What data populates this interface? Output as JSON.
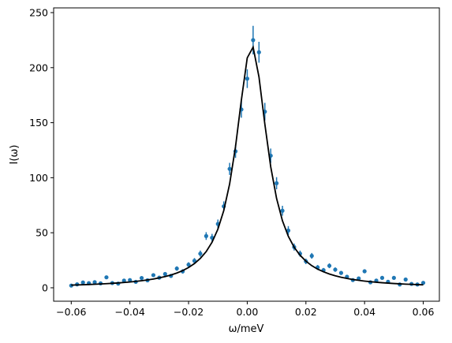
{
  "chart_data": {
    "type": "errorbar",
    "xlabel": "ω/meV",
    "ylabel": "I(ω)",
    "x": [
      -0.06,
      -0.058,
      -0.056,
      -0.054,
      -0.052,
      -0.05,
      -0.048,
      -0.046,
      -0.044,
      -0.042,
      -0.04,
      -0.038,
      -0.036,
      -0.034,
      -0.032,
      -0.03,
      -0.028,
      -0.026,
      -0.024,
      -0.022,
      -0.02,
      -0.018,
      -0.016,
      -0.014,
      -0.012,
      -0.01,
      -0.008,
      -0.006,
      -0.004,
      -0.002,
      0.0,
      0.002,
      0.004,
      0.006,
      0.008,
      0.01,
      0.012,
      0.014,
      0.016,
      0.018,
      0.02,
      0.022,
      0.024,
      0.026,
      0.028,
      0.03,
      0.032,
      0.034,
      0.036,
      0.038,
      0.04,
      0.042,
      0.044,
      0.046,
      0.048,
      0.05,
      0.052,
      0.054,
      0.056,
      0.058,
      0.06
    ],
    "series": [
      {
        "color": "#1f77b4",
        "values": [
          2.0,
          3.1,
          4.8,
          4.2,
          5.1,
          4.0,
          9.5,
          4.3,
          3.8,
          6.5,
          7.0,
          5.4,
          8.9,
          6.8,
          11.5,
          9.2,
          12.5,
          10.8,
          17.5,
          14.9,
          21.0,
          24.5,
          31.0,
          47.0,
          45.5,
          58.0,
          74.0,
          108.0,
          124.0,
          162.0,
          190.0,
          225.0,
          214.0,
          160.0,
          120.0,
          95.0,
          70.0,
          52.0,
          37.0,
          31.0,
          24.0,
          29.0,
          18.5,
          16.0,
          20.0,
          16.5,
          13.5,
          10.0,
          7.0,
          8.5,
          15.0,
          5.0,
          6.5,
          9.0,
          5.5,
          9.0,
          3.0,
          7.5,
          3.5,
          3.0,
          4.5
        ],
        "errors": [
          0.8,
          0.9,
          1.0,
          1.0,
          1.0,
          1.0,
          1.2,
          1.0,
          1.0,
          1.1,
          1.2,
          1.2,
          1.4,
          1.3,
          1.6,
          1.5,
          1.7,
          1.7,
          2.0,
          2.0,
          2.2,
          2.5,
          2.8,
          3.5,
          3.5,
          4.0,
          4.5,
          5.5,
          6.0,
          7.5,
          8.5,
          13,
          9.5,
          8.0,
          6.5,
          5.5,
          4.5,
          4.0,
          3.2,
          2.8,
          2.5,
          2.6,
          2.2,
          2.0,
          2.2,
          2.0,
          1.8,
          1.6,
          1.4,
          1.4,
          1.8,
          1.2,
          1.2,
          1.4,
          1.2,
          1.3,
          1.0,
          1.2,
          1.0,
          1.0,
          1.0
        ]
      },
      {
        "type": "line",
        "color": "#000000",
        "values": [
          2.43,
          2.59,
          2.78,
          2.98,
          3.2,
          3.45,
          3.73,
          4.04,
          4.4,
          4.81,
          5.27,
          5.8,
          6.42,
          7.14,
          7.98,
          8.99,
          10.19,
          11.64,
          13.42,
          15.63,
          18.42,
          22.0,
          26.7,
          32.9,
          41.4,
          53.3,
          70.2,
          94.4,
          128.2,
          170.6,
          208.9,
          218.7,
          191.6,
          148.7,
          110.0,
          81.2,
          60.9,
          46.8,
          36.8,
          29.6,
          24.2,
          20.1,
          16.9,
          14.5,
          12.5,
          10.9,
          9.56,
          8.46,
          7.54,
          6.76,
          6.1,
          5.53,
          5.03,
          4.6,
          4.22,
          3.88,
          3.59,
          3.32,
          3.09,
          2.87,
          2.68
        ]
      }
    ],
    "xlim": [
      -0.066,
      0.0655
    ],
    "ylim": [
      -12.2,
      254.3
    ],
    "xticks": [
      {
        "value": -0.06,
        "label": "−0.06"
      },
      {
        "value": -0.04,
        "label": "−0.04"
      },
      {
        "value": -0.02,
        "label": "−0.02"
      },
      {
        "value": 0,
        "label": "0.00"
      },
      {
        "value": 0.02,
        "label": "0.02"
      },
      {
        "value": 0.04,
        "label": "0.04"
      },
      {
        "value": 0.06,
        "label": "0.06"
      }
    ],
    "yticks": [
      0,
      50,
      100,
      150,
      200,
      250
    ],
    "grid": false
  }
}
